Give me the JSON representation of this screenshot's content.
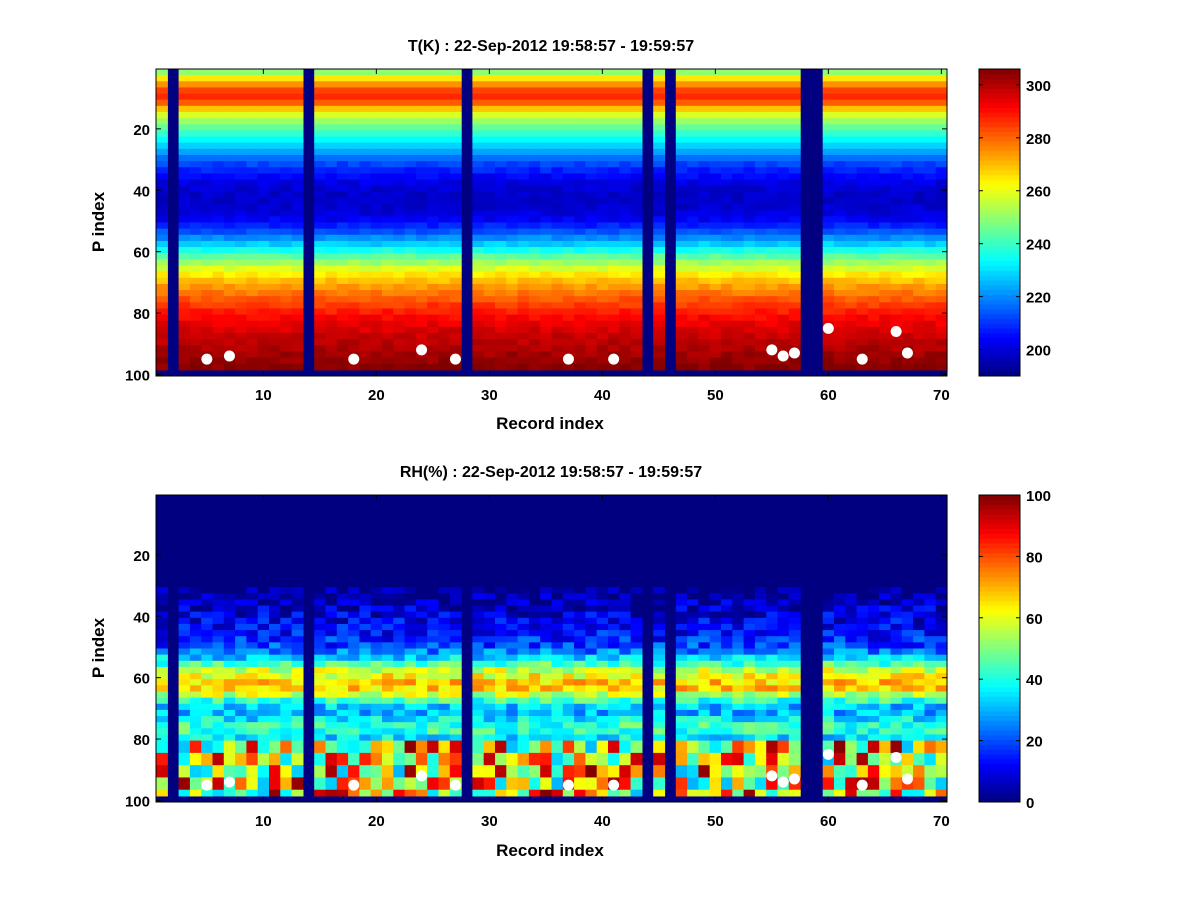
{
  "chart_data": [
    {
      "type": "heatmap",
      "title": "T(K) : 22-Sep-2012 19:58:57 - 19:59:57",
      "xlabel": "Record index",
      "ylabel": "P index",
      "xlim": [
        0.5,
        70.5
      ],
      "ylim": [
        100.5,
        0.5
      ],
      "xticks": [
        10,
        20,
        30,
        40,
        50,
        60,
        70
      ],
      "yticks": [
        20,
        40,
        60,
        80,
        100
      ],
      "colorbar": {
        "ticks": [
          200,
          220,
          240,
          260,
          280,
          300
        ],
        "range": [
          190,
          306
        ],
        "colormap": "jet"
      },
      "missing_records": [
        2,
        14,
        28,
        44,
        46,
        58,
        59
      ],
      "profile": {
        "p_index": [
          1,
          3,
          6,
          8,
          10,
          12,
          14,
          18,
          22,
          26,
          30,
          34,
          38,
          42,
          46,
          50,
          54,
          58,
          62,
          66,
          70,
          74,
          78,
          82,
          86,
          90,
          94,
          97
        ],
        "temperature_K": [
          250,
          265,
          280,
          288,
          286,
          276,
          262,
          248,
          236,
          226,
          214,
          206,
          200,
          198,
          199,
          205,
          217,
          232,
          248,
          262,
          272,
          280,
          287,
          293,
          297,
          300,
          303,
          305
        ]
      },
      "markers": {
        "record": [
          5,
          7,
          18,
          24,
          27,
          37,
          41,
          55,
          56,
          57,
          60,
          63,
          66,
          67
        ],
        "p_index": [
          95,
          94,
          95,
          92,
          95,
          95,
          95,
          92,
          94,
          93,
          85,
          95,
          86,
          93
        ]
      }
    },
    {
      "type": "heatmap",
      "title": "RH(%) : 22-Sep-2012 19:58:57 - 19:59:57",
      "xlabel": "Record index",
      "ylabel": "P index",
      "xlim": [
        0.5,
        70.5
      ],
      "ylim": [
        100.5,
        0.5
      ],
      "xticks": [
        10,
        20,
        30,
        40,
        50,
        60,
        70
      ],
      "yticks": [
        20,
        40,
        60,
        80,
        100
      ],
      "colorbar": {
        "ticks": [
          0,
          20,
          40,
          60,
          80,
          100
        ],
        "range": [
          0,
          100
        ],
        "colormap": "jet"
      },
      "missing_records": [
        2,
        14,
        28,
        44,
        46,
        58,
        59
      ],
      "profile": {
        "p_index": [
          1,
          30,
          36,
          40,
          45,
          50,
          54,
          57,
          60,
          62,
          64,
          66,
          68,
          70,
          72,
          74,
          76,
          78,
          80,
          82,
          86,
          90,
          94,
          97
        ],
        "rh_percent": [
          0,
          0,
          6,
          10,
          13,
          20,
          38,
          58,
          64,
          70,
          64,
          50,
          35,
          28,
          32,
          40,
          45,
          40,
          30,
          88,
          72,
          62,
          80,
          85
        ]
      },
      "markers": {
        "record": [
          5,
          7,
          18,
          24,
          27,
          37,
          41,
          55,
          56,
          57,
          60,
          63,
          66,
          67
        ],
        "p_index": [
          95,
          94,
          95,
          92,
          95,
          95,
          95,
          92,
          94,
          93,
          85,
          95,
          86,
          93
        ]
      }
    }
  ]
}
